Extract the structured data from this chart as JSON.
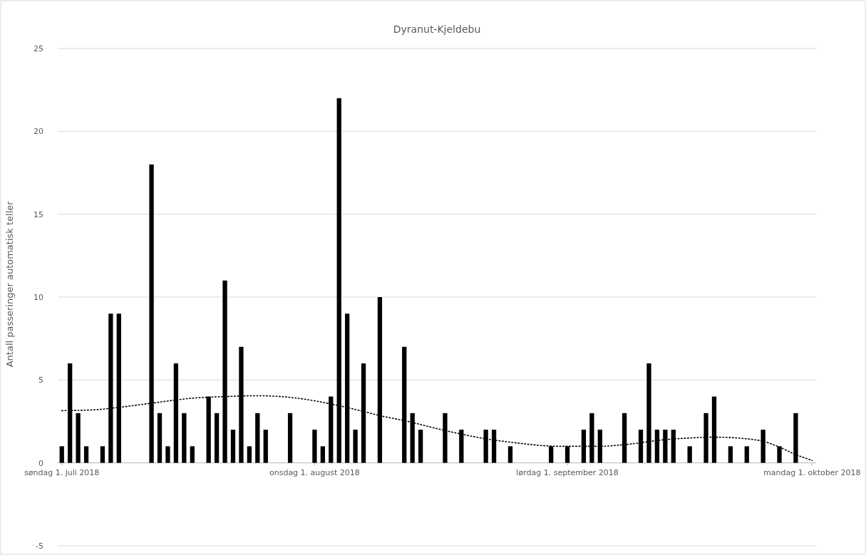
{
  "chart_data": {
    "type": "bar",
    "title": "Dyranut-Kjeldebu",
    "ylabel": "Antall passeringer automatisk teller",
    "xlim": [
      "2018-06-30T12:00",
      "2018-10-01T12:00"
    ],
    "xticks": [
      {
        "value": "2018-07-01",
        "label": "søndag 1. juli 2018"
      },
      {
        "value": "2018-08-01",
        "label": "onsdag 1. august 2018"
      },
      {
        "value": "2018-09-01",
        "label": "lørdag 1. september 2018"
      },
      {
        "value": "2018-10-01",
        "label": "mandag 1. oktober 2018"
      }
    ],
    "ylim": [
      -5,
      25
    ],
    "yticks": [
      -5,
      0,
      5,
      10,
      15,
      20,
      25
    ],
    "grid": "y",
    "series": [
      {
        "color": "#000000",
        "x": [
          "2018-07-01",
          "2018-07-02",
          "2018-07-03",
          "2018-07-04",
          "2018-07-06",
          "2018-07-07",
          "2018-07-08",
          "2018-07-12",
          "2018-07-13",
          "2018-07-14",
          "2018-07-15",
          "2018-07-16",
          "2018-07-17",
          "2018-07-19",
          "2018-07-20",
          "2018-07-21",
          "2018-07-22",
          "2018-07-23",
          "2018-07-24",
          "2018-07-25",
          "2018-07-26",
          "2018-07-29",
          "2018-08-01",
          "2018-08-02",
          "2018-08-03",
          "2018-08-04",
          "2018-08-05",
          "2018-08-06",
          "2018-08-07",
          "2018-08-09",
          "2018-08-12",
          "2018-08-13",
          "2018-08-14",
          "2018-08-17",
          "2018-08-19",
          "2018-08-22",
          "2018-08-23",
          "2018-08-25",
          "2018-08-30",
          "2018-09-01",
          "2018-09-03",
          "2018-09-04",
          "2018-09-05",
          "2018-09-08",
          "2018-09-10",
          "2018-09-11",
          "2018-09-12",
          "2018-09-13",
          "2018-09-14",
          "2018-09-16",
          "2018-09-18",
          "2018-09-19",
          "2018-09-21",
          "2018-09-23",
          "2018-09-25",
          "2018-09-27",
          "2018-09-29"
        ],
        "values": [
          1,
          6,
          3,
          1,
          1,
          9,
          9,
          18,
          3,
          1,
          6,
          3,
          1,
          4,
          3,
          11,
          2,
          7,
          1,
          3,
          2,
          3,
          2,
          1,
          4,
          22,
          9,
          2,
          6,
          10,
          7,
          3,
          2,
          3,
          2,
          2,
          2,
          1,
          1,
          1,
          2,
          3,
          2,
          3,
          2,
          6,
          2,
          2,
          2,
          1,
          3,
          4,
          1,
          1,
          2,
          1,
          3
        ]
      },
      {
        "type": "line",
        "color": "#000000",
        "line_style": "dotted",
        "x": [
          "2018-07-01",
          "2018-07-05",
          "2018-07-08",
          "2018-07-12",
          "2018-07-17",
          "2018-07-21",
          "2018-07-25",
          "2018-07-29",
          "2018-08-04",
          "2018-08-07",
          "2018-08-09",
          "2018-08-12",
          "2018-08-17",
          "2018-08-22",
          "2018-08-25",
          "2018-08-31",
          "2018-09-05",
          "2018-09-08",
          "2018-09-13",
          "2018-09-16",
          "2018-09-19",
          "2018-09-23",
          "2018-09-25",
          "2018-09-27",
          "2018-09-29",
          "2018-10-01"
        ],
        "values": [
          3.15,
          3.2,
          3.35,
          3.6,
          3.9,
          4.0,
          4.05,
          3.95,
          3.45,
          3.1,
          2.85,
          2.55,
          1.95,
          1.45,
          1.25,
          1.0,
          1.0,
          1.1,
          1.4,
          1.5,
          1.55,
          1.45,
          1.3,
          0.95,
          0.5,
          0.15
        ]
      }
    ]
  }
}
